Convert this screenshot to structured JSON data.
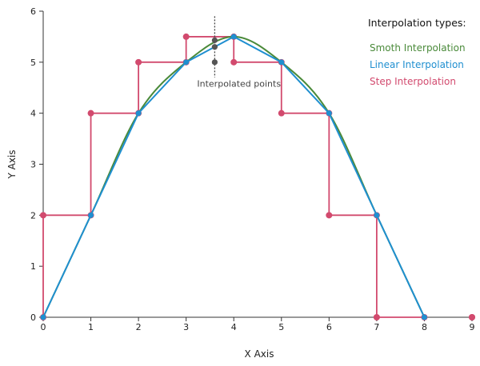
{
  "chart_data": {
    "type": "line",
    "title": "",
    "xlabel": "X Axis",
    "ylabel": "Y Axis",
    "xlim": [
      0,
      9
    ],
    "ylim": [
      0,
      6
    ],
    "x_ticks": [
      0,
      1,
      2,
      3,
      4,
      5,
      6,
      7,
      8,
      9
    ],
    "y_ticks": [
      0,
      1,
      2,
      3,
      4,
      5,
      6
    ],
    "grid": false,
    "legend": {
      "title": "Interpolation types:",
      "position": "top-right"
    },
    "x": [
      0,
      1,
      2,
      3,
      4,
      5,
      6,
      7,
      8
    ],
    "series": [
      {
        "name": "Smoth Interpolation",
        "interpolation": "smooth",
        "color": "#4a8a3a",
        "values": [
          0,
          2,
          4,
          5,
          5.5,
          5,
          4,
          2,
          0
        ]
      },
      {
        "name": "Linear Interpolation",
        "interpolation": "linear",
        "color": "#1f8fd0",
        "values": [
          0,
          2,
          4,
          5,
          5.5,
          5,
          4,
          2,
          0
        ]
      },
      {
        "name": "Step Interpolation",
        "interpolation": "step",
        "color": "#d24a6e",
        "values": [
          0,
          2,
          4,
          5,
          5.5,
          5,
          4,
          2,
          0
        ]
      }
    ],
    "annotation": {
      "text": "Interpolated points",
      "x": 3.6,
      "points": [
        5.43,
        5.3,
        5.0
      ],
      "point_color": "#555555"
    }
  }
}
